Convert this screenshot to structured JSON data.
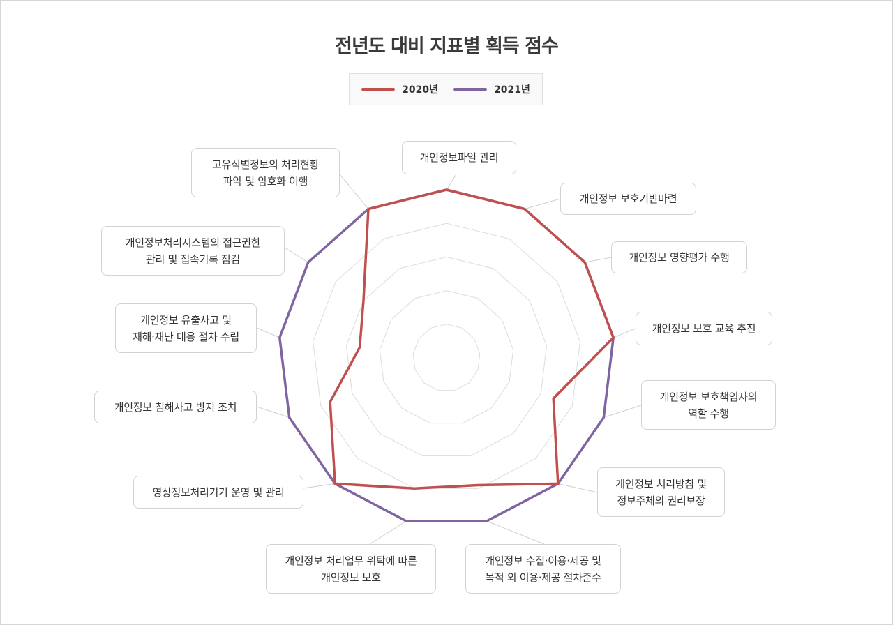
{
  "chart_data": {
    "type": "radar",
    "title": "전년도 대비 지표별 획득 점수",
    "rmax": 100,
    "rings": 5,
    "grid": true,
    "legend_position": "top",
    "categories": [
      "개인정보파일 관리",
      "개인정보 보호기반마련",
      "개인정보 영향평가 수행",
      "개인정보 보호 교육 추진",
      "개인정보 보호책임자의\n역할 수행",
      "개인정보 처리방침 및\n정보주체의 권리보장",
      "개인정보 수집·이용·제공 및\n목적 외 이용·제공 절차준수",
      "개인정보 처리업무 위탁에 따른\n개인정보 보호",
      "영상정보처리기기 운영 및 관리",
      "개인정보 침해사고 방지 조치",
      "개인정보 유출사고 및\n재해·재난 대응 절차 수립",
      "개인정보처리시스템의 접근권한\n관리 및 접속기록 점검",
      "고유식별정보의 처리현황\n파악 및 암호화 이행"
    ],
    "series": [
      {
        "name": "2020년",
        "color": "#c0504d",
        "values": [
          100,
          100,
          100,
          100,
          68,
          100,
          78,
          80,
          100,
          74,
          52,
          60,
          100
        ]
      },
      {
        "name": "2021년",
        "color": "#8064a2",
        "values": [
          100,
          100,
          100,
          100,
          100,
          100,
          100,
          100,
          100,
          100,
          100,
          100,
          100
        ]
      }
    ]
  }
}
